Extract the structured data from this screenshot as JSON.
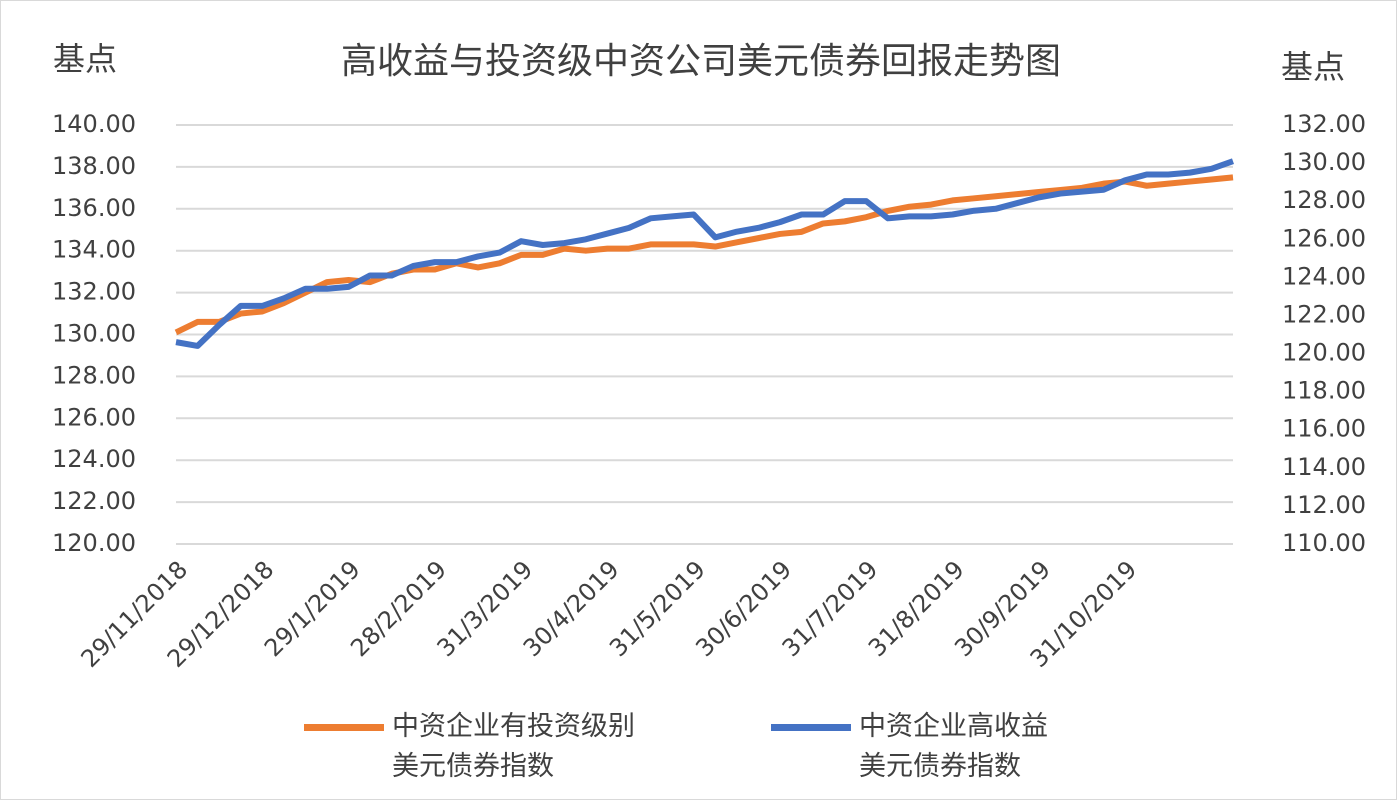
{
  "chart_data": {
    "type": "line",
    "title": "高收益与投资级中资公司美元债券回报走势图",
    "y_label": "基点",
    "y2_label": "基点",
    "categories": [
      "29/11/2018",
      null,
      null,
      null,
      "29/12/2018",
      null,
      null,
      null,
      "29/1/2019",
      null,
      null,
      null,
      "28/2/2019",
      null,
      null,
      null,
      "31/3/2019",
      null,
      null,
      null,
      "30/4/2019",
      null,
      null,
      null,
      "31/5/2019",
      null,
      null,
      null,
      "30/6/2019",
      null,
      null,
      null,
      "31/7/2019",
      null,
      null,
      null,
      "31/8/2019",
      null,
      null,
      null,
      "30/9/2019",
      null,
      null,
      null,
      "31/10/2019",
      null,
      null,
      null,
      null,
      null
    ],
    "series": [
      {
        "name": "中资企业有投资级别\n美元债券指数",
        "color": "#ed7d31",
        "axis": "y",
        "values": [
          130.1,
          130.6,
          130.6,
          131.0,
          131.1,
          131.5,
          132.0,
          132.5,
          132.6,
          132.5,
          132.9,
          133.1,
          133.1,
          133.4,
          133.2,
          133.4,
          133.8,
          133.8,
          134.1,
          134.0,
          134.1,
          134.1,
          134.3,
          134.3,
          134.3,
          134.2,
          134.4,
          134.6,
          134.8,
          134.9,
          135.3,
          135.4,
          135.6,
          135.9,
          136.1,
          136.2,
          136.4,
          136.5,
          136.6,
          136.7,
          136.8,
          136.9,
          137.0,
          137.2,
          137.3,
          137.1,
          137.2,
          137.3,
          137.4,
          137.5
        ]
      },
      {
        "name": "中资企业高收益\n美元债券指数",
        "color": "#4472c4",
        "axis": "y2",
        "values": [
          120.6,
          120.4,
          121.5,
          122.5,
          122.5,
          122.9,
          123.4,
          123.4,
          123.5,
          124.1,
          124.1,
          124.6,
          124.8,
          124.8,
          125.1,
          125.3,
          125.9,
          125.7,
          125.8,
          126.0,
          126.3,
          126.6,
          127.1,
          127.2,
          127.3,
          126.1,
          126.4,
          126.6,
          126.9,
          127.3,
          127.3,
          128.0,
          128.0,
          127.1,
          127.2,
          127.2,
          127.3,
          127.5,
          127.6,
          127.9,
          128.2,
          128.4,
          128.5,
          128.6,
          129.1,
          129.4,
          129.4,
          129.5,
          129.7,
          130.1
        ]
      }
    ],
    "ylim": [
      120,
      140
    ],
    "yticks": [
      {
        "value": 120,
        "label": "120.00"
      },
      {
        "value": 122,
        "label": "122.00"
      },
      {
        "value": 124,
        "label": "124.00"
      },
      {
        "value": 126,
        "label": "126.00"
      },
      {
        "value": 128,
        "label": "128.00"
      },
      {
        "value": 130,
        "label": "130.00"
      },
      {
        "value": 132,
        "label": "132.00"
      },
      {
        "value": 134,
        "label": "134.00"
      },
      {
        "value": 136,
        "label": "136.00"
      },
      {
        "value": 138,
        "label": "138.00"
      },
      {
        "value": 140,
        "label": "140.00"
      }
    ],
    "y2lim": [
      110,
      132
    ],
    "y2ticks": [
      {
        "value": 110,
        "label": "110.00"
      },
      {
        "value": 112,
        "label": "112.00"
      },
      {
        "value": 114,
        "label": "114.00"
      },
      {
        "value": 116,
        "label": "116.00"
      },
      {
        "value": 118,
        "label": "118.00"
      },
      {
        "value": 120,
        "label": "120.00"
      },
      {
        "value": 122,
        "label": "122.00"
      },
      {
        "value": 124,
        "label": "124.00"
      },
      {
        "value": 126,
        "label": "126.00"
      },
      {
        "value": 128,
        "label": "128.00"
      },
      {
        "value": 130,
        "label": "130.00"
      },
      {
        "value": 132,
        "label": "132.00"
      }
    ],
    "grid": true,
    "legend": "bottom"
  }
}
